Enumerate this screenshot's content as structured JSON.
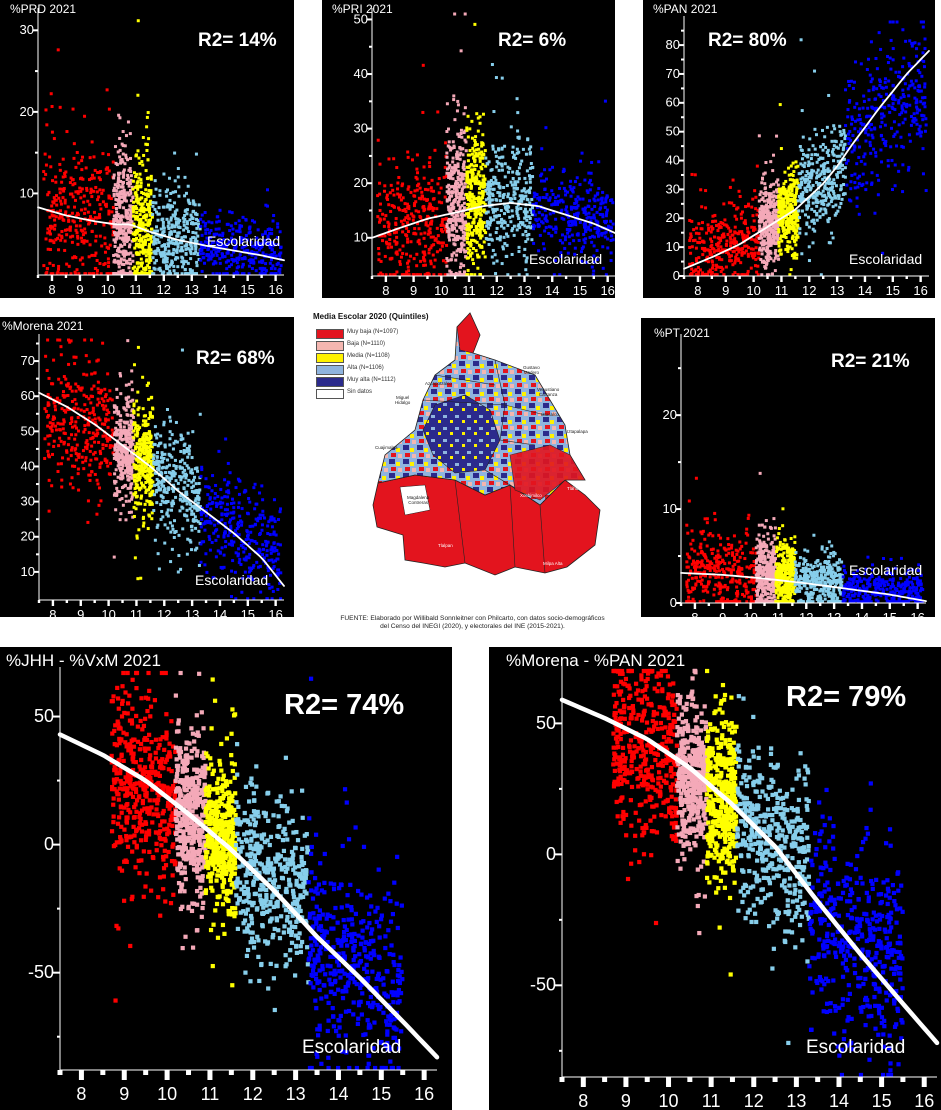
{
  "quintile_colors": {
    "muy_baja": "#ff0000",
    "baja": "#f4a9b8",
    "media": "#ffff00",
    "alta": "#87ceeb",
    "muy_alta": "#0000ff",
    "fit": "#ffffff",
    "background": "#000000"
  },
  "chart_data": [
    {
      "id": "p1",
      "type": "scatter",
      "title": "%PRD 2021",
      "r2_label": "R2= 14%",
      "xlabel": "Escolaridad",
      "xlim": [
        7.5,
        16.3
      ],
      "ylim": [
        0,
        32
      ],
      "xticks": [
        8,
        9,
        10,
        11,
        12,
        13,
        14,
        15,
        16
      ],
      "xtick_labels": [
        "8",
        "9",
        "10",
        "11",
        "12",
        "13",
        "14",
        "15",
        "16"
      ],
      "yticks": [
        10,
        20,
        30
      ],
      "ytick_labels": [
        "10",
        "20",
        "30"
      ],
      "quintile_ranges": [
        [
          7.7,
          10.2
        ],
        [
          10.2,
          10.9
        ],
        [
          10.9,
          11.6
        ],
        [
          11.6,
          13.3
        ],
        [
          13.3,
          16.2
        ]
      ],
      "quintile_means": [
        7,
        6.5,
        6,
        5,
        3.5
      ],
      "quintile_spread": [
        4.5,
        4.5,
        4.5,
        3,
        2
      ],
      "fit_curve": {
        "x": [
          7.5,
          8.5,
          9.5,
          10.3,
          10.8,
          11.5,
          12.5,
          13.5,
          14.5,
          15.5,
          16.3
        ],
        "y": [
          8.3,
          7.3,
          6.6,
          6.2,
          6.2,
          5.3,
          4.3,
          3.6,
          3.0,
          2.4,
          1.8
        ]
      }
    },
    {
      "id": "p2",
      "type": "scatter",
      "title": "%PRI 2021",
      "r2_label": "R2= 6%",
      "xlabel": "Escolaridad",
      "xlim": [
        7.5,
        16.3
      ],
      "ylim": [
        3,
        51
      ],
      "xticks": [
        8,
        9,
        10,
        11,
        12,
        13,
        14,
        15,
        16
      ],
      "xtick_labels": [
        "8",
        "9",
        "10",
        "11",
        "12",
        "13",
        "14",
        "15",
        "16"
      ],
      "yticks": [
        10,
        20,
        30,
        40,
        50
      ],
      "ytick_labels": [
        "10",
        "20",
        "30",
        "40",
        "50"
      ],
      "quintile_ranges": [
        [
          7.7,
          10.2
        ],
        [
          10.2,
          10.9
        ],
        [
          10.9,
          11.6
        ],
        [
          11.6,
          13.3
        ],
        [
          13.3,
          16.2
        ]
      ],
      "quintile_means": [
        13,
        18,
        18,
        17,
        15
      ],
      "quintile_spread": [
        6,
        7,
        6,
        5.5,
        4
      ],
      "fit_curve": {
        "x": [
          7.5,
          8.5,
          9.5,
          10.5,
          11.5,
          12.5,
          13.5,
          14.5,
          15.5,
          16.3
        ],
        "y": [
          10,
          11.8,
          13.5,
          14.6,
          15.8,
          16.4,
          15.8,
          14.2,
          12.6,
          10.8
        ]
      }
    },
    {
      "id": "p3",
      "type": "scatter",
      "title": "%PAN 2021",
      "r2_label": "R2= 80%",
      "xlabel": "Escolaridad",
      "xlim": [
        7.5,
        16.3
      ],
      "ylim": [
        0,
        88
      ],
      "xticks": [
        8,
        9,
        10,
        11,
        12,
        13,
        14,
        15,
        16
      ],
      "xtick_labels": [
        "8",
        "9",
        "10",
        "11",
        "12",
        "13",
        "14",
        "15",
        "16"
      ],
      "yticks": [
        0,
        10,
        20,
        30,
        40,
        50,
        60,
        70,
        80
      ],
      "ytick_labels": [
        "0",
        "10",
        "20",
        "30",
        "40",
        "50",
        "60",
        "70",
        "80"
      ],
      "quintile_ranges": [
        [
          7.7,
          10.2
        ],
        [
          10.2,
          10.9
        ],
        [
          10.9,
          11.6
        ],
        [
          11.6,
          13.3
        ],
        [
          13.3,
          16.2
        ]
      ],
      "quintile_means": [
        12,
        18,
        22,
        32,
        52
      ],
      "quintile_spread": [
        7,
        7,
        7,
        8,
        13
      ],
      "fit_curve": {
        "x": [
          7.5,
          8.5,
          9.5,
          10.5,
          11.5,
          12.5,
          13.0,
          13.5,
          14.5,
          15.5,
          16.3
        ],
        "y": [
          2.5,
          6.5,
          11,
          17,
          23,
          32,
          38,
          45,
          58,
          70,
          78
        ]
      }
    },
    {
      "id": "p4",
      "type": "scatter",
      "title": "%Morena 2021",
      "r2_label": "R2= 68%",
      "xlabel": "Escolaridad",
      "xlim": [
        7.5,
        16.3
      ],
      "ylim": [
        2,
        76
      ],
      "xticks": [
        8,
        9,
        10,
        11,
        12,
        13,
        14,
        15,
        16
      ],
      "xtick_labels": [
        "8",
        "9",
        "10",
        "11",
        "12",
        "13",
        "14",
        "15",
        "16"
      ],
      "yticks": [
        10,
        20,
        30,
        40,
        50,
        60,
        70
      ],
      "ytick_labels": [
        "10",
        "20",
        "30",
        "40",
        "50",
        "60",
        "70"
      ],
      "quintile_ranges": [
        [
          7.7,
          10.2
        ],
        [
          10.2,
          10.9
        ],
        [
          10.9,
          11.6
        ],
        [
          11.6,
          13.3
        ],
        [
          13.3,
          16.2
        ]
      ],
      "quintile_means": [
        50,
        45,
        42,
        36,
        24
      ],
      "quintile_spread": [
        9,
        8,
        8,
        8,
        8
      ],
      "fit_curve": {
        "x": [
          7.5,
          8.5,
          9.5,
          10.5,
          11.5,
          12.5,
          13.5,
          14.5,
          15.5,
          16.3
        ],
        "y": [
          61,
          57,
          52,
          46,
          40,
          33,
          27,
          21,
          14,
          6
        ]
      }
    },
    {
      "id": "p5",
      "type": "scatter",
      "title": "%PT 2021",
      "r2_label": "R2= 21%",
      "xlabel": "Escolaridad",
      "xlim": [
        7.5,
        16.3
      ],
      "ylim": [
        0,
        28
      ],
      "xticks": [
        8,
        9,
        10,
        11,
        12,
        13,
        14,
        15,
        16
      ],
      "xtick_labels": [
        "8",
        "9",
        "10",
        "11",
        "12",
        "13",
        "14",
        "15",
        "16"
      ],
      "yticks": [
        0,
        10,
        20
      ],
      "ytick_labels": [
        "0",
        "10",
        "20"
      ],
      "quintile_ranges": [
        [
          7.7,
          10.2
        ],
        [
          10.2,
          10.9
        ],
        [
          10.9,
          11.6
        ],
        [
          11.6,
          13.3
        ],
        [
          13.3,
          16.2
        ]
      ],
      "quintile_means": [
        4,
        3.8,
        3.5,
        2.8,
        1.8
      ],
      "quintile_spread": [
        2,
        2,
        1.8,
        1.4,
        1
      ],
      "fit_curve": {
        "x": [
          7.5,
          9,
          10.5,
          12,
          13.5,
          15,
          16.3
        ],
        "y": [
          3.2,
          3.0,
          2.6,
          2.1,
          1.5,
          0.9,
          0.2
        ]
      }
    },
    {
      "id": "p6",
      "type": "scatter",
      "title": "%JHH - %VxM 2021",
      "r2_label": "R2= 74%",
      "xlabel": "Escolaridad",
      "xlim": [
        7.5,
        16.3
      ],
      "ylim": [
        -88,
        67
      ],
      "xticks": [
        8,
        9,
        10,
        11,
        12,
        13,
        14,
        15,
        16
      ],
      "xtick_labels": [
        "8",
        "9",
        "10",
        "11",
        "12",
        "13",
        "14",
        "15",
        "16"
      ],
      "yticks": [
        50,
        0,
        -50
      ],
      "ytick_labels": [
        "50",
        "0",
        "-50"
      ],
      "quintile_ranges": [
        [
          8.7,
          10.2
        ],
        [
          10.2,
          10.9
        ],
        [
          10.9,
          11.6
        ],
        [
          11.6,
          13.3
        ],
        [
          13.3,
          15.5
        ]
      ],
      "quintile_means": [
        22,
        12,
        4,
        -12,
        -45
      ],
      "quintile_spread": [
        18,
        16,
        14,
        16,
        18
      ],
      "fit_curve": {
        "x": [
          7.5,
          8.5,
          9.5,
          10.5,
          11.5,
          12.5,
          13.5,
          14.5,
          15.5,
          16.3
        ],
        "y": [
          43,
          35,
          25,
          12,
          -2,
          -18,
          -36,
          -52,
          -69,
          -83
        ]
      }
    },
    {
      "id": "p7",
      "type": "scatter",
      "title": "%Morena - %PAN 2021",
      "r2_label": "R2= 79%",
      "xlabel": "Escolaridad",
      "xlim": [
        7.5,
        16.3
      ],
      "ylim": [
        -85,
        70
      ],
      "xticks": [
        8,
        9,
        10,
        11,
        12,
        13,
        14,
        15,
        16
      ],
      "xtick_labels": [
        "8",
        "9",
        "10",
        "11",
        "12",
        "13",
        "14",
        "15",
        "16"
      ],
      "yticks": [
        50,
        0,
        -50
      ],
      "ytick_labels": [
        "50",
        "0",
        "-50"
      ],
      "quintile_ranges": [
        [
          8.7,
          10.2
        ],
        [
          10.2,
          10.9
        ],
        [
          10.9,
          11.6
        ],
        [
          11.6,
          13.3
        ],
        [
          13.3,
          15.5
        ]
      ],
      "quintile_means": [
        35,
        28,
        20,
        8,
        -30
      ],
      "quintile_spread": [
        16,
        14,
        14,
        16,
        20
      ],
      "fit_curve": {
        "x": [
          7.5,
          8.5,
          9.5,
          10.5,
          11.5,
          12.5,
          13.5,
          14.5,
          15.5,
          16.3
        ],
        "y": [
          59,
          52,
          44,
          33,
          19,
          3,
          -18,
          -38,
          -57,
          -72
        ]
      }
    }
  ],
  "map": {
    "title": "Media Escolar 2020 (Quintiles)",
    "legend": [
      {
        "label": "Muy baja (N=1097)",
        "color": "#e3141e"
      },
      {
        "label": "Baja (N=1110)",
        "color": "#f4b6b0"
      },
      {
        "label": "Media (N=1108)",
        "color": "#fff200"
      },
      {
        "label": "Alta (N=1106)",
        "color": "#8fb4df"
      },
      {
        "label": "Muy alta (N=1112)",
        "color": "#2b2a8c"
      },
      {
        "label": "Sin datos",
        "color": "#ffffff"
      }
    ],
    "labels": {
      "azcapotzalco": "Azcapotzalco",
      "gustavo_madero": "Gustavo\nMadero",
      "miguel_hidalgo": "Miguel\nHidalgo",
      "venustiano_carranza": "Venustiano\nCarranza",
      "iztacalco": "Iztacalco",
      "iztapalapa": "Iztapalapa",
      "cuajimalpa": "Cuajimalpa",
      "magdalena_contreras": "Magdalena\nContreras",
      "tlalpan": "Tlalpan",
      "xochimilco": "Xochimilco",
      "tlahuac": "Tláhuac",
      "milpa_alta": "Milpa Alta"
    },
    "source": "FUENTE: Elaborado por Willibald Sonnleitner con Philcarto, con datos socio-demográficos\ndel Censo del INEGI (2020), y electorales del INE (2015-2021)."
  }
}
